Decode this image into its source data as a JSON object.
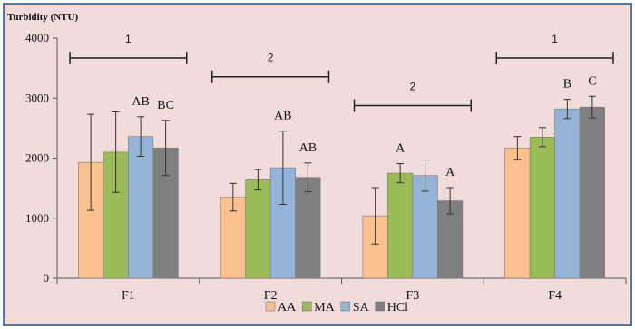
{
  "chart_data": {
    "type": "bar",
    "title": "Turbidity  (NTU)",
    "ylim": [
      0,
      4000
    ],
    "yticks": [
      0,
      1000,
      2000,
      3000,
      4000
    ],
    "categories": [
      "F1",
      "F2",
      "F3",
      "F4"
    ],
    "series": [
      {
        "name": "AA",
        "color": "#fac090",
        "values": [
          1930,
          1350,
          1040,
          2170
        ],
        "errors": [
          800,
          230,
          470,
          190
        ],
        "labels": [
          "",
          "",
          "",
          ""
        ]
      },
      {
        "name": "MA",
        "color": "#9bbb59",
        "values": [
          2100,
          1640,
          1750,
          2350
        ],
        "errors": [
          670,
          170,
          160,
          160
        ],
        "labels": [
          "",
          "",
          "A",
          ""
        ]
      },
      {
        "name": "SA",
        "color": "#95b3d7",
        "values": [
          2360,
          1840,
          1710,
          2820
        ],
        "errors": [
          330,
          610,
          260,
          160
        ],
        "labels": [
          "AB",
          "AB",
          "",
          "B"
        ]
      },
      {
        "name": "HCl",
        "color": "#7f7f7f",
        "values": [
          2170,
          1680,
          1290,
          2850
        ],
        "errors": [
          460,
          240,
          220,
          180
        ],
        "labels": [
          "BC",
          "AB",
          "A",
          "C"
        ]
      }
    ],
    "group_labels": [
      "1",
      "2",
      "2",
      "1"
    ],
    "legend": {
      "position": "bottom"
    },
    "grid": false
  }
}
